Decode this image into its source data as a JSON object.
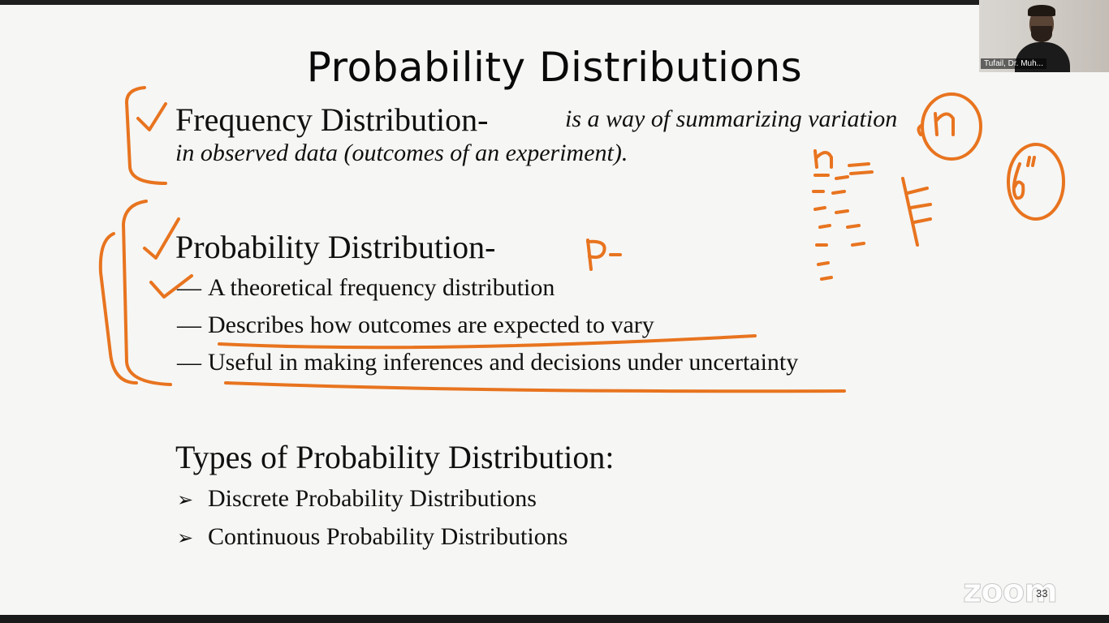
{
  "slide": {
    "title": "Probability Distributions",
    "freq_heading": "Frequency Distribution-",
    "freq_def_line1": "is a way of summarizing variation",
    "freq_def_line2": "in observed data (outcomes of an experiment).",
    "prob_heading": "Probability Distribution-",
    "prob_bullets": [
      "A theoretical frequency distribution",
      "Describes how outcomes are expected to vary",
      "Useful in making inferences and decisions under uncertainty"
    ],
    "dash": "—",
    "types_heading": "Types of Probability Distribution:",
    "types_items": [
      "Discrete Probability Distributions",
      "Continuous Probability Distributions"
    ],
    "arrow_glyph": "➢",
    "slide_number": "33"
  },
  "annotations": {
    "ink_color": "#e8741f",
    "circled_n": "n",
    "circled_sigma": "6\"",
    "p_mark": "p-"
  },
  "video": {
    "participant_name": "Tufail, Dr. Muh..."
  },
  "app": {
    "logo_text": "zoom"
  }
}
